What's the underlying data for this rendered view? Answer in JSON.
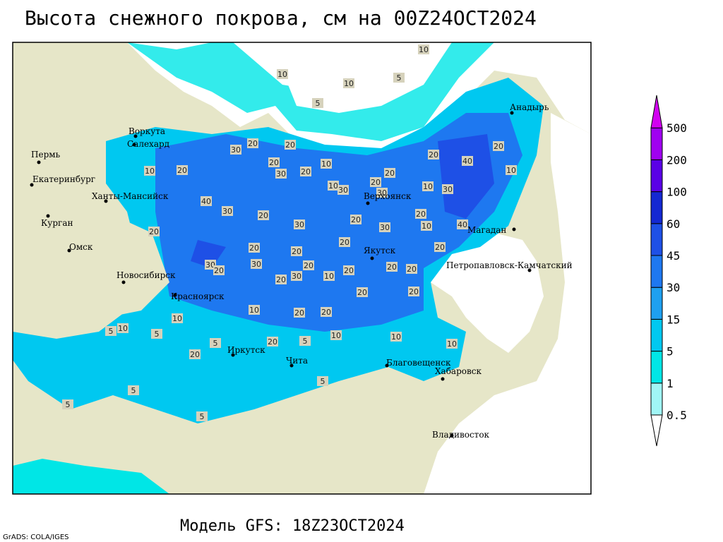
{
  "title": "Высота снежного покрова, см на 00Z24OCT2024",
  "footer": "Модель GFS: 18Z23OCT2024",
  "credit": "GrADS: COLA/IGES",
  "legend": {
    "levels": [
      0.5,
      1,
      5,
      15,
      30,
      45,
      60,
      100,
      200,
      500
    ],
    "colors": [
      "#ffffff",
      "#a0f5f5",
      "#00e6e6",
      "#00c8f0",
      "#1ea0f0",
      "#1e78f0",
      "#1e50e6",
      "#1428d2",
      "#5a00e6",
      "#a000f0",
      "#d200f0"
    ]
  },
  "cities": [
    "Воркута",
    "Салехард",
    "Пермь",
    "Екатеринбург",
    "Ханты-Мансийск",
    "Курган",
    "Омск",
    "Новосибирск",
    "Красноярск",
    "Иркутск",
    "Чита",
    "Верхоянск",
    "Якутск",
    "Магадан",
    "Петропавловск-Камчатский",
    "Благовещенск",
    "Хабаровск",
    "Владивосток",
    "Анадырь"
  ],
  "contour_labels": [
    10,
    10,
    5,
    10,
    5,
    30,
    20,
    20,
    20,
    30,
    20,
    10,
    20,
    10,
    30,
    20,
    30,
    20,
    40,
    20,
    10,
    10,
    30,
    10,
    20,
    40,
    30,
    20,
    30,
    20,
    20,
    10,
    40,
    20,
    20,
    20,
    20,
    30,
    30,
    20,
    30,
    30,
    20,
    10,
    20,
    20,
    20,
    20,
    20,
    20,
    20,
    10,
    20,
    20,
    10,
    10,
    5,
    5,
    5,
    20,
    10,
    10,
    10,
    20,
    5,
    5,
    5,
    5,
    5
  ]
}
